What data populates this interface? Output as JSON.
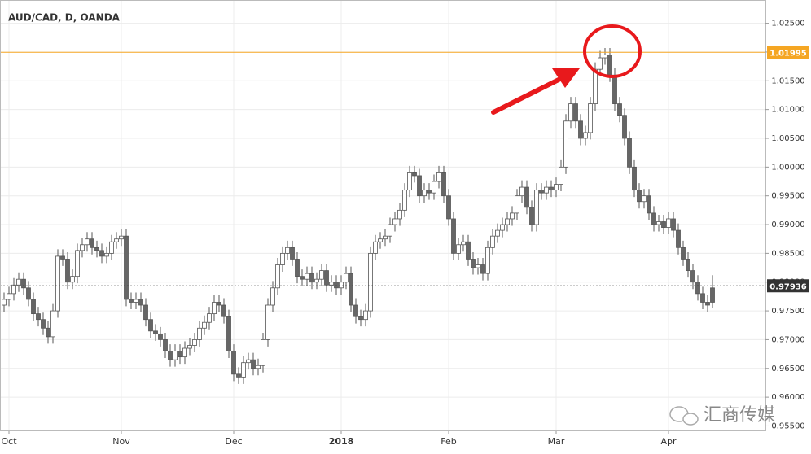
{
  "chart_data": {
    "type": "candlestick",
    "title": "AUD/CAD, D, OANDA",
    "open": [
      0.976,
      0.977,
      0.978,
      0.9795,
      0.9805,
      0.979,
      0.977,
      0.9745,
      0.9735,
      0.972,
      0.9705,
      0.975,
      0.9845,
      0.984,
      0.98,
      0.981,
      0.9855,
      0.9865,
      0.9875,
      0.986,
      0.9855,
      0.9845,
      0.985,
      0.987,
      0.9875,
      0.988,
      0.977,
      0.9765,
      0.977,
      0.976,
      0.9735,
      0.9715,
      0.971,
      0.97,
      0.968,
      0.9665,
      0.968,
      0.967,
      0.9685,
      0.969,
      0.97,
      0.972,
      0.973,
      0.9745,
      0.9765,
      0.976,
      0.974,
      0.968,
      0.964,
      0.9635,
      0.966,
      0.9665,
      0.965,
      0.9655,
      0.97,
      0.976,
      0.979,
      0.983,
      0.985,
      0.986,
      0.984,
      0.981,
      0.9805,
      0.9815,
      0.98,
      0.9805,
      0.982,
      0.9795,
      0.98,
      0.979,
      0.98,
      0.9815,
      0.976,
      0.974,
      0.9735,
      0.975,
      0.985,
      0.987,
      0.9875,
      0.988,
      0.99,
      0.991,
      0.9925,
      0.996,
      0.999,
      0.9985,
      0.995,
      0.996,
      0.9955,
      0.9975,
      0.999,
      0.995,
      0.991,
      0.985,
      0.9865,
      0.987,
      0.984,
      0.9825,
      0.983,
      0.9815,
      0.986,
      0.988,
      0.989,
      0.99,
      0.991,
      0.992,
      0.995,
      0.9965,
      0.993,
      0.99,
      0.996,
      0.9955,
      0.9965,
      0.996,
      0.997,
      1.0,
      1.008,
      1.011,
      1.008,
      1.005,
      1.006,
      1.011,
      1.017,
      1.019,
      1.0195,
      1.016,
      1.011,
      1.009,
      1.005,
      1.0,
      0.996,
      0.994,
      0.995,
      0.992,
      0.99,
      0.9905,
      0.9895,
      0.991,
      0.989,
      0.986,
      0.984,
      0.982,
      0.98,
      0.978,
      0.9765,
      0.979
    ],
    "high": [
      0.9782,
      0.9792,
      0.9807,
      0.9817,
      0.9817,
      0.9802,
      0.9782,
      0.9757,
      0.9747,
      0.9732,
      0.9762,
      0.9857,
      0.9857,
      0.9852,
      0.9822,
      0.9867,
      0.9877,
      0.9887,
      0.9887,
      0.9872,
      0.9867,
      0.9862,
      0.9882,
      0.9887,
      0.9892,
      0.9892,
      0.9782,
      0.9782,
      0.9782,
      0.9772,
      0.9747,
      0.9727,
      0.9722,
      0.9712,
      0.9692,
      0.9692,
      0.9692,
      0.9697,
      0.9702,
      0.9712,
      0.9732,
      0.9742,
      0.9757,
      0.9777,
      0.9777,
      0.9772,
      0.9752,
      0.9692,
      0.9652,
      0.9672,
      0.9677,
      0.9677,
      0.9667,
      0.9712,
      0.9772,
      0.9802,
      0.9842,
      0.9862,
      0.9872,
      0.9872,
      0.9852,
      0.9822,
      0.9827,
      0.9827,
      0.9817,
      0.9832,
      0.9832,
      0.9812,
      0.9812,
      0.9812,
      0.9827,
      0.9827,
      0.9772,
      0.9752,
      0.9762,
      0.9862,
      0.9882,
      0.9887,
      0.9892,
      0.9912,
      0.9922,
      0.9937,
      0.9972,
      1.0002,
      1.0002,
      0.9997,
      0.9972,
      0.9972,
      0.9987,
      1.0002,
      1.0002,
      0.9962,
      0.9922,
      0.9877,
      0.9882,
      0.9882,
      0.9852,
      0.9842,
      0.9842,
      0.9872,
      0.9892,
      0.9902,
      0.9912,
      0.9922,
      0.9932,
      0.9962,
      0.9977,
      0.9977,
      0.9942,
      0.9972,
      0.9972,
      0.9977,
      0.9977,
      0.9982,
      1.0012,
      1.0092,
      1.0122,
      1.0122,
      1.0092,
      1.0072,
      1.0122,
      1.0182,
      1.0202,
      1.0207,
      1.0207,
      1.0172,
      1.0122,
      1.0102,
      1.0062,
      1.0012,
      0.9972,
      0.9962,
      0.9962,
      0.9932,
      0.9917,
      0.9917,
      0.9922,
      0.9922,
      0.9902,
      0.9872,
      0.9852,
      0.9832,
      0.9812,
      0.9792,
      0.9777,
      0.9812
    ],
    "low": [
      0.9748,
      0.9758,
      0.9768,
      0.9783,
      0.9778,
      0.9758,
      0.9733,
      0.9723,
      0.9708,
      0.9693,
      0.9693,
      0.9738,
      0.9828,
      0.9788,
      0.9788,
      0.9798,
      0.9843,
      0.9853,
      0.9848,
      0.9843,
      0.9833,
      0.9833,
      0.9838,
      0.9858,
      0.9863,
      0.9758,
      0.9753,
      0.9753,
      0.9748,
      0.9723,
      0.9703,
      0.9698,
      0.9688,
      0.9668,
      0.9653,
      0.9653,
      0.9658,
      0.9658,
      0.9673,
      0.9678,
      0.9688,
      0.9708,
      0.9718,
      0.9733,
      0.9748,
      0.9728,
      0.9668,
      0.9628,
      0.9623,
      0.9623,
      0.9648,
      0.9638,
      0.9638,
      0.9643,
      0.9688,
      0.9748,
      0.9778,
      0.9818,
      0.9838,
      0.9828,
      0.9798,
      0.9793,
      0.9793,
      0.9788,
      0.9788,
      0.9793,
      0.9783,
      0.9783,
      0.9778,
      0.9778,
      0.9788,
      0.9748,
      0.9728,
      0.9723,
      0.9723,
      0.9738,
      0.9838,
      0.9858,
      0.9863,
      0.9868,
      0.9888,
      0.9898,
      0.9913,
      0.9948,
      0.9973,
      0.9938,
      0.9938,
      0.9943,
      0.9943,
      0.9963,
      0.9938,
      0.9898,
      0.9838,
      0.9838,
      0.9853,
      0.9828,
      0.9813,
      0.9813,
      0.9803,
      0.9803,
      0.9848,
      0.9868,
      0.9878,
      0.9888,
      0.9898,
      0.9908,
      0.9938,
      0.9918,
      0.9888,
      0.9888,
      0.9943,
      0.9943,
      0.9948,
      0.9948,
      0.9958,
      0.9988,
      1.0068,
      1.0068,
      1.0038,
      1.0038,
      1.0048,
      1.0098,
      1.0158,
      1.0178,
      1.0148,
      1.0098,
      1.0078,
      1.0038,
      0.9988,
      0.9948,
      0.9928,
      0.9928,
      0.9908,
      0.9888,
      0.9888,
      0.9883,
      0.9883,
      0.9878,
      0.9848,
      0.9828,
      0.9808,
      0.9788,
      0.9768,
      0.9753,
      0.9748,
      0.9755
    ],
    "close": [
      0.977,
      0.978,
      0.9795,
      0.9805,
      0.979,
      0.977,
      0.9745,
      0.9735,
      0.972,
      0.9705,
      0.975,
      0.9845,
      0.984,
      0.98,
      0.981,
      0.9855,
      0.9865,
      0.9875,
      0.986,
      0.9855,
      0.9845,
      0.985,
      0.987,
      0.9875,
      0.988,
      0.977,
      0.9765,
      0.977,
      0.976,
      0.9735,
      0.9715,
      0.971,
      0.97,
      0.968,
      0.9665,
      0.968,
      0.967,
      0.9685,
      0.969,
      0.97,
      0.972,
      0.973,
      0.9745,
      0.9765,
      0.976,
      0.974,
      0.968,
      0.964,
      0.9635,
      0.966,
      0.9665,
      0.965,
      0.9655,
      0.97,
      0.976,
      0.979,
      0.983,
      0.985,
      0.986,
      0.984,
      0.981,
      0.9805,
      0.9815,
      0.98,
      0.9805,
      0.982,
      0.9795,
      0.98,
      0.979,
      0.98,
      0.9815,
      0.976,
      0.974,
      0.9735,
      0.975,
      0.985,
      0.987,
      0.9875,
      0.988,
      0.99,
      0.991,
      0.9925,
      0.996,
      0.999,
      0.9985,
      0.995,
      0.996,
      0.9955,
      0.9975,
      0.999,
      0.995,
      0.991,
      0.985,
      0.9865,
      0.987,
      0.984,
      0.9825,
      0.983,
      0.9815,
      0.986,
      0.988,
      0.989,
      0.99,
      0.991,
      0.992,
      0.995,
      0.9965,
      0.993,
      0.99,
      0.996,
      0.9955,
      0.9965,
      0.996,
      0.997,
      1.0,
      1.008,
      1.011,
      1.008,
      1.005,
      1.006,
      1.011,
      1.017,
      1.019,
      1.0195,
      1.016,
      1.011,
      1.009,
      1.005,
      1.0,
      0.996,
      0.994,
      0.995,
      0.992,
      0.99,
      0.9905,
      0.9895,
      0.991,
      0.989,
      0.986,
      0.984,
      0.982,
      0.98,
      0.978,
      0.9765,
      0.976,
      0.9765
    ],
    "up_color": "#ffffff",
    "down_color": "#666666",
    "wick_color": "#555555",
    "xticks": [
      {
        "value": 1,
        "label": "Oct"
      },
      {
        "value": 24,
        "label": "Nov"
      },
      {
        "value": 47,
        "label": "Dec"
      },
      {
        "value": 69,
        "label": "2018"
      },
      {
        "value": 91,
        "label": "Feb"
      },
      {
        "value": 113,
        "label": "Mar"
      },
      {
        "value": 136,
        "label": "Apr"
      }
    ],
    "ylim": [
      0.9545,
      1.0265
    ],
    "yticks": [
      {
        "value": 0.955,
        "label": "0.95500"
      },
      {
        "value": 0.96,
        "label": "0.96000"
      },
      {
        "value": 0.965,
        "label": "0.96500"
      },
      {
        "value": 0.97,
        "label": "0.97000"
      },
      {
        "value": 0.975,
        "label": "0.97500"
      },
      {
        "value": 0.98,
        "label": "0.98000"
      },
      {
        "value": 0.985,
        "label": "0.98500"
      },
      {
        "value": 0.99,
        "label": "0.99000"
      },
      {
        "value": 0.995,
        "label": "0.99500"
      },
      {
        "value": 1.0,
        "label": "1.00000"
      },
      {
        "value": 1.005,
        "label": "1.00500"
      },
      {
        "value": 1.01,
        "label": "1.01000"
      },
      {
        "value": 1.015,
        "label": "1.01500"
      },
      {
        "value": 1.02,
        "label": "1.02000"
      },
      {
        "value": 1.025,
        "label": "1.02500"
      }
    ],
    "grid": true,
    "price_lines": [
      {
        "value": 1.01995,
        "color": "#f5a623",
        "style": "solid"
      },
      {
        "value": 0.97936,
        "color": "#333333",
        "style": "dotted"
      }
    ]
  },
  "watermark": "汇商传媒"
}
